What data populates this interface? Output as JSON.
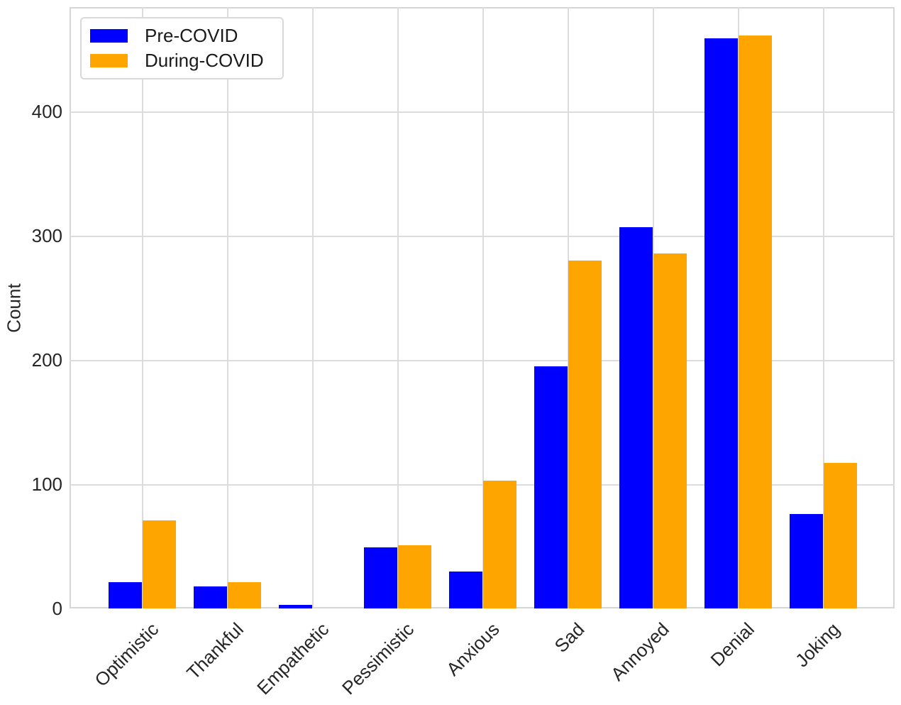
{
  "chart_data": {
    "type": "bar",
    "title": "",
    "xlabel": "",
    "ylabel": "Count",
    "categories": [
      "Optimistic",
      "Thankful",
      "Empathetic",
      "Pessimistic",
      "Anxious",
      "Sad",
      "Annoyed",
      "Denial",
      "Joking"
    ],
    "series": [
      {
        "name": "Pre-COVID",
        "color": "#0000ff",
        "values": [
          21,
          18,
          3,
          49,
          30,
          195,
          307,
          459,
          76
        ]
      },
      {
        "name": "During-COVID",
        "color": "#ffa500",
        "values": [
          71,
          21,
          0,
          51,
          103,
          280,
          286,
          461,
          117
        ]
      }
    ],
    "yticks": [
      0,
      100,
      200,
      300,
      400
    ],
    "ylim": [
      0,
      484
    ],
    "grid": true,
    "grid_color": "#dcdcdc",
    "axis_edge_color": "#d6d6d6",
    "text_color": "#262626",
    "legend_position": "upper left",
    "x_tick_rotation_deg": 45
  }
}
